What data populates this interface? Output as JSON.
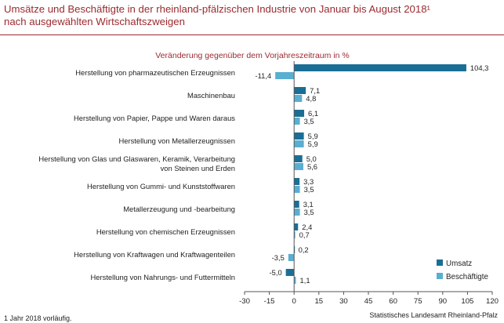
{
  "header": {
    "title_line1": "Umsätze und Beschäftigte in der rheinland-pfälzischen Industrie von Januar bis August 2018¹",
    "title_line2": "nach ausgewählten Wirtschaftszweigen"
  },
  "footer": {
    "footnote": "1 Jahr 2018 vorläufig.",
    "source": "Statistisches Landesamt Rheinland-Pfalz"
  },
  "colors": {
    "title": "#9c2a2f",
    "umsatz": "#1a6e95",
    "beschaeftigte": "#5aaed1",
    "axis": "#555555"
  },
  "chart_data": {
    "type": "bar",
    "orientation": "horizontal",
    "subtitle": "Veränderung gegenüber dem Vorjahreszeitraum in %",
    "categories": [
      "Herstellung von pharmazeutischen Erzeugnissen",
      "Maschinenbau",
      "Herstellung von Papier, Pappe und Waren daraus",
      "Herstellung von Metallerzeugnissen",
      "Herstellung von Glas und Glaswaren, Keramik, Verarbeitung von Steinen und Erden",
      "Herstellung von Gummi- und Kunststoffwaren",
      "Metallerzeugung und -bearbeitung",
      "Herstellung von chemischen Erzeugnissen",
      "Herstellung von Kraftwagen und Kraftwagenteilen",
      "Herstellung von Nahrungs- und Futtermitteln"
    ],
    "category_lines": [
      [
        "Herstellung von pharmazeutischen Erzeugnissen"
      ],
      [
        "Maschinenbau"
      ],
      [
        "Herstellung von Papier, Pappe und Waren daraus"
      ],
      [
        "Herstellung von Metallerzeugnissen"
      ],
      [
        "Herstellung von Glas und Glaswaren, Keramik, Verarbeitung",
        "von Steinen und Erden"
      ],
      [
        "Herstellung von Gummi- und Kunststoffwaren"
      ],
      [
        "Metallerzeugung und -bearbeitung"
      ],
      [
        "Herstellung von chemischen Erzeugnissen"
      ],
      [
        "Herstellung von Kraftwagen und Kraftwagenteilen"
      ],
      [
        "Herstellung von Nahrungs- und Futtermitteln"
      ]
    ],
    "series": [
      {
        "name": "Umsatz",
        "values": [
          104.3,
          7.1,
          6.1,
          5.9,
          5.0,
          3.3,
          3.1,
          2.4,
          0.2,
          -5.0
        ],
        "labels": [
          "104,3",
          "7,1",
          "6,1",
          "5,9",
          "5,0",
          "3,3",
          "3,1",
          "2,4",
          "0,2",
          "-5,0"
        ]
      },
      {
        "name": "Beschäftigte",
        "values": [
          -11.4,
          4.8,
          3.5,
          5.9,
          5.6,
          3.5,
          3.5,
          0.7,
          -3.5,
          1.1
        ],
        "labels": [
          "-11,4",
          "4,8",
          "3,5",
          "5,9",
          "5,6",
          "3,5",
          "3,5",
          "0,7",
          "-3,5",
          "1,1"
        ]
      }
    ],
    "xlim": [
      -30,
      120
    ],
    "xticks": [
      -30,
      -15,
      0,
      15,
      30,
      45,
      60,
      75,
      90,
      105,
      120
    ],
    "xtick_labels": [
      "-30",
      "-15",
      "0",
      "15",
      "30",
      "45",
      "60",
      "75",
      "90",
      "105",
      "120"
    ],
    "legend_position": "bottom-right",
    "grid": false
  }
}
